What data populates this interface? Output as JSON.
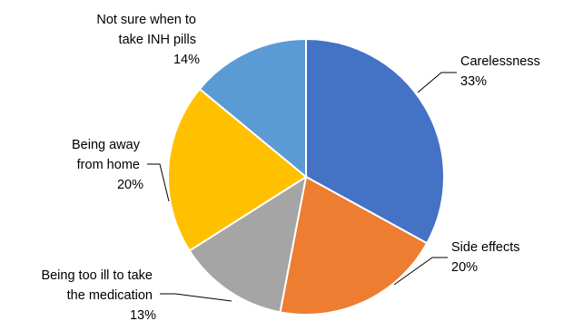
{
  "chart_data": {
    "type": "pie",
    "title": "",
    "slices": [
      {
        "label": "Carelessness",
        "value": 33,
        "display": "33%",
        "color": "#4472C4"
      },
      {
        "label": "Side effects",
        "value": 20,
        "display": "20%",
        "color": "#ED7D31"
      },
      {
        "label": "Being too ill to take the medication",
        "value": 13,
        "display": "13%",
        "color": "#A5A5A5"
      },
      {
        "label": "Being away from home",
        "value": 20,
        "display": "20%",
        "color": "#FFC000"
      },
      {
        "label": "Not sure when to take INH pills",
        "value": 14,
        "display": "14%",
        "color": "#5B9BD5"
      }
    ],
    "label_lines": [
      [
        "Carelessness",
        "33%"
      ],
      [
        "Side effects",
        "20%"
      ],
      [
        "Being too ill to take",
        "the medication",
        "13%"
      ],
      [
        "Being away",
        "from home",
        "20%"
      ],
      [
        "Not sure when to",
        "take INH pills",
        "14%"
      ]
    ],
    "legend": "none",
    "start_angle": "12 o'clock",
    "direction": "clockwise"
  }
}
